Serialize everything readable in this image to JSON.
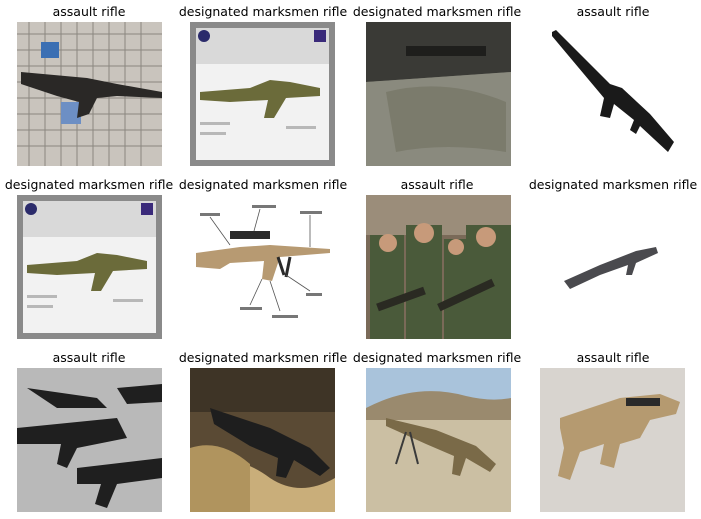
{
  "figure": {
    "grid": {
      "rows": 3,
      "cols": 4
    },
    "images": [
      {
        "label": "assault rifle",
        "subject": "rifle-on-wall-photo"
      },
      {
        "label": "designated marksmen rifle",
        "subject": "rifle-infographic"
      },
      {
        "label": "designated marksmen rifle",
        "subject": "rifle-receiver-closeup"
      },
      {
        "label": "assault rifle",
        "subject": "rifle-white-background"
      },
      {
        "label": "designated marksmen rifle",
        "subject": "rifle-infographic"
      },
      {
        "label": "designated marksmen rifle",
        "subject": "rifle-annotated-diagram"
      },
      {
        "label": "assault rifle",
        "subject": "soldiers-with-rifles"
      },
      {
        "label": "designated marksmen rifle",
        "subject": "rifle-small-white-background"
      },
      {
        "label": "assault rifle",
        "subject": "rifles-pile-photo"
      },
      {
        "label": "designated marksmen rifle",
        "subject": "rifle-on-sandbags"
      },
      {
        "label": "designated marksmen rifle",
        "subject": "rifle-on-bipod-desert"
      },
      {
        "label": "assault rifle",
        "subject": "tan-rifle-studio"
      }
    ]
  }
}
